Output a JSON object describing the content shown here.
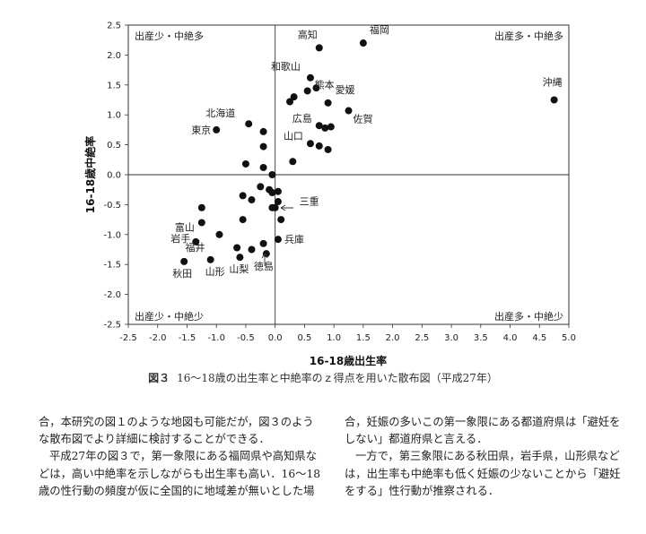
{
  "chart_data": {
    "type": "scatter",
    "title": "",
    "xlabel": "16-18歳出生率",
    "ylabel": "16-18歳中絶率",
    "xlim": [
      -2.5,
      5.0
    ],
    "ylim": [
      -2.5,
      2.5
    ],
    "xticks": [
      "-2.5",
      "-2.0",
      "-1.5",
      "-1.0",
      "-0.5",
      "0.0",
      "0.5",
      "1.0",
      "1.5",
      "2.0",
      "2.5",
      "3.0",
      "3.5",
      "4.0",
      "4.5",
      "5.0"
    ],
    "yticks": [
      "2.5",
      "2.0",
      "1.5",
      "1.0",
      "0.5",
      "0.0",
      "-0.5",
      "-1.0",
      "-1.5",
      "-2.0",
      "-2.5"
    ],
    "grid": false,
    "quadrant_labels": {
      "top_left": "出産少・中絶多",
      "top_right": "出産多・中絶多",
      "bottom_left": "出産少・中絶少",
      "bottom_right": "出産多・中絶少"
    },
    "points": [
      {
        "x": 0.75,
        "y": 2.12,
        "label": "高知"
      },
      {
        "x": 1.5,
        "y": 2.2,
        "label": "福岡"
      },
      {
        "x": 0.6,
        "y": 1.62,
        "label": "和歌山"
      },
      {
        "x": 0.55,
        "y": 1.4,
        "label": "熊本"
      },
      {
        "x": 0.9,
        "y": 1.2,
        "label": "愛媛"
      },
      {
        "x": 1.25,
        "y": 1.07,
        "label": "佐賀"
      },
      {
        "x": 0.75,
        "y": 0.82,
        "label": "広島"
      },
      {
        "x": 0.6,
        "y": 0.52,
        "label": "山口"
      },
      {
        "x": 4.75,
        "y": 1.25,
        "label": "沖縄"
      },
      {
        "x": -1.0,
        "y": 0.75,
        "label": "東京"
      },
      {
        "x": -0.45,
        "y": 0.85,
        "label": "北海道"
      },
      {
        "x": -1.55,
        "y": -1.45,
        "label": "秋田"
      },
      {
        "x": -1.35,
        "y": -1.12,
        "label": "岩手"
      },
      {
        "x": -1.25,
        "y": -0.8,
        "label": "富山"
      },
      {
        "x": -1.1,
        "y": -1.42,
        "label": "山形"
      },
      {
        "x": -0.95,
        "y": -1.0,
        "label": "福井"
      },
      {
        "x": -0.6,
        "y": -1.38,
        "label": "山梨"
      },
      {
        "x": -0.15,
        "y": -1.32,
        "label": "徳島"
      },
      {
        "x": 0.05,
        "y": -1.08,
        "label": "兵庫"
      },
      {
        "x": 0.0,
        "y": -0.55,
        "label": "三重"
      },
      {
        "x": 0.25,
        "y": 1.22,
        "label": ""
      },
      {
        "x": 0.32,
        "y": 1.3,
        "label": ""
      },
      {
        "x": 0.7,
        "y": 1.45,
        "label": ""
      },
      {
        "x": 0.85,
        "y": 0.78,
        "label": ""
      },
      {
        "x": 0.95,
        "y": 0.8,
        "label": ""
      },
      {
        "x": 0.75,
        "y": 0.48,
        "label": ""
      },
      {
        "x": 0.9,
        "y": 0.42,
        "label": ""
      },
      {
        "x": 0.3,
        "y": 0.22,
        "label": ""
      },
      {
        "x": -0.2,
        "y": 0.72,
        "label": ""
      },
      {
        "x": -0.2,
        "y": 0.47,
        "label": ""
      },
      {
        "x": -0.5,
        "y": 0.18,
        "label": ""
      },
      {
        "x": -0.2,
        "y": 0.12,
        "label": ""
      },
      {
        "x": -0.05,
        "y": 0.0,
        "label": ""
      },
      {
        "x": -0.55,
        "y": -0.35,
        "label": ""
      },
      {
        "x": -0.4,
        "y": -0.42,
        "label": ""
      },
      {
        "x": -0.25,
        "y": -0.2,
        "label": ""
      },
      {
        "x": -0.1,
        "y": -0.25,
        "label": ""
      },
      {
        "x": -0.05,
        "y": -0.3,
        "label": ""
      },
      {
        "x": 0.05,
        "y": -0.28,
        "label": ""
      },
      {
        "x": 0.05,
        "y": -0.45,
        "label": ""
      },
      {
        "x": -0.05,
        "y": -0.55,
        "label": ""
      },
      {
        "x": 0.1,
        "y": -0.75,
        "label": ""
      },
      {
        "x": -0.55,
        "y": -0.75,
        "label": ""
      },
      {
        "x": -1.25,
        "y": -0.55,
        "label": ""
      },
      {
        "x": -0.65,
        "y": -1.22,
        "label": ""
      },
      {
        "x": -0.4,
        "y": -1.25,
        "label": ""
      },
      {
        "x": -0.2,
        "y": -1.15,
        "label": ""
      }
    ]
  },
  "caption": {
    "figure_no": "図３",
    "text": "16～18歳の出生率と中絶率のｚ得点を用いた散布図（平成27年）"
  },
  "body": {
    "left_lines": [
      "合，本研究の図１のような地図も可能だが，図３のよう",
      "な散布図でより詳細に検討することができる．",
      "平成27年の図３で，第一象限にある福岡県や高知県な",
      "どは，高い中絶率を示しながらも出生率も高い．16～18",
      "歳の性行動の頻度が仮に全国的に地域差が無いとした場"
    ],
    "right_lines": [
      "合，妊娠の多いこの第一象限にある都道府県は「避妊を",
      "しない」都道府県と言える．",
      "一方で，第三象限にある秋田県，岩手県，山形県など",
      "は，出生率も中絶率も低く妊娠の少ないことから「避妊",
      "をする」性行動が推察される．"
    ]
  },
  "colors": {
    "text": "#222222",
    "point": "#111111",
    "axis": "#333333"
  }
}
